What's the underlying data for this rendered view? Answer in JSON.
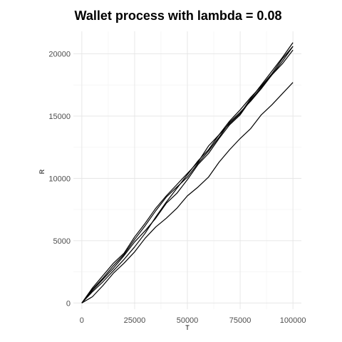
{
  "chart_data": {
    "type": "line",
    "title": "Wallet process with lambda =  0.08",
    "xlabel": "T",
    "ylabel": "R",
    "xlim": [
      -4000,
      104000
    ],
    "ylim": [
      -500,
      21800
    ],
    "x_ticks": [
      0,
      25000,
      50000,
      75000,
      100000
    ],
    "x_tick_labels": [
      "0",
      "25000",
      "50000",
      "75000",
      "100000"
    ],
    "y_ticks": [
      0,
      5000,
      10000,
      15000,
      20000
    ],
    "y_tick_labels": [
      "0",
      "5000",
      "10000",
      "15000",
      "20000"
    ],
    "grid": true,
    "legend": "none",
    "line_color": "#000000",
    "series": [
      {
        "x": [
          0,
          5000,
          10000,
          15000,
          20000,
          25000,
          30000,
          35000,
          40000,
          45000,
          50000,
          55000,
          60000,
          65000,
          70000,
          75000,
          80000,
          85000,
          90000,
          95000,
          100000
        ],
        "values": [
          0,
          1000,
          1900,
          2800,
          3800,
          4900,
          5800,
          6800,
          8000,
          8800,
          9900,
          11100,
          12000,
          13200,
          14300,
          15100,
          16300,
          17300,
          18300,
          19400,
          20600
        ]
      },
      {
        "x": [
          0,
          5000,
          10000,
          15000,
          20000,
          25000,
          30000,
          35000,
          40000,
          45000,
          50000,
          55000,
          60000,
          65000,
          70000,
          75000,
          80000,
          85000,
          90000,
          95000,
          100000
        ],
        "values": [
          0,
          1200,
          2200,
          3200,
          4000,
          5300,
          6400,
          7600,
          8600,
          9500,
          10400,
          11300,
          12600,
          13500,
          14600,
          15500,
          16500,
          17400,
          18400,
          19600,
          20600
        ]
      },
      {
        "x": [
          0,
          5000,
          10000,
          15000,
          20000,
          25000,
          30000,
          35000,
          40000,
          45000,
          50000,
          55000,
          60000,
          65000,
          70000,
          75000,
          80000,
          85000,
          90000,
          95000,
          100000
        ],
        "values": [
          0,
          900,
          1700,
          2600,
          3500,
          4500,
          5600,
          6900,
          8100,
          9200,
          10300,
          11400,
          12300,
          13500,
          14400,
          15200,
          16400,
          17500,
          18600,
          19700,
          20900
        ]
      },
      {
        "x": [
          0,
          5000,
          10000,
          15000,
          20000,
          25000,
          30000,
          35000,
          40000,
          45000,
          50000,
          55000,
          60000,
          65000,
          70000,
          75000,
          80000,
          85000,
          90000,
          95000,
          100000
        ],
        "values": [
          0,
          1100,
          2000,
          3000,
          3900,
          5100,
          6200,
          7400,
          8500,
          9300,
          10100,
          11200,
          12200,
          13300,
          14500,
          15300,
          16200,
          17200,
          18300,
          19200,
          20300
        ]
      },
      {
        "x": [
          0,
          5000,
          10000,
          15000,
          20000,
          25000,
          30000,
          35000,
          40000,
          45000,
          50000,
          55000,
          60000,
          65000,
          70000,
          75000,
          80000,
          85000,
          90000,
          95000,
          100000
        ],
        "values": [
          0,
          500,
          1400,
          2400,
          3200,
          4100,
          5200,
          6100,
          6800,
          7600,
          8600,
          9300,
          10100,
          11300,
          12300,
          13200,
          14000,
          15100,
          15900,
          16800,
          17700
        ]
      }
    ]
  }
}
